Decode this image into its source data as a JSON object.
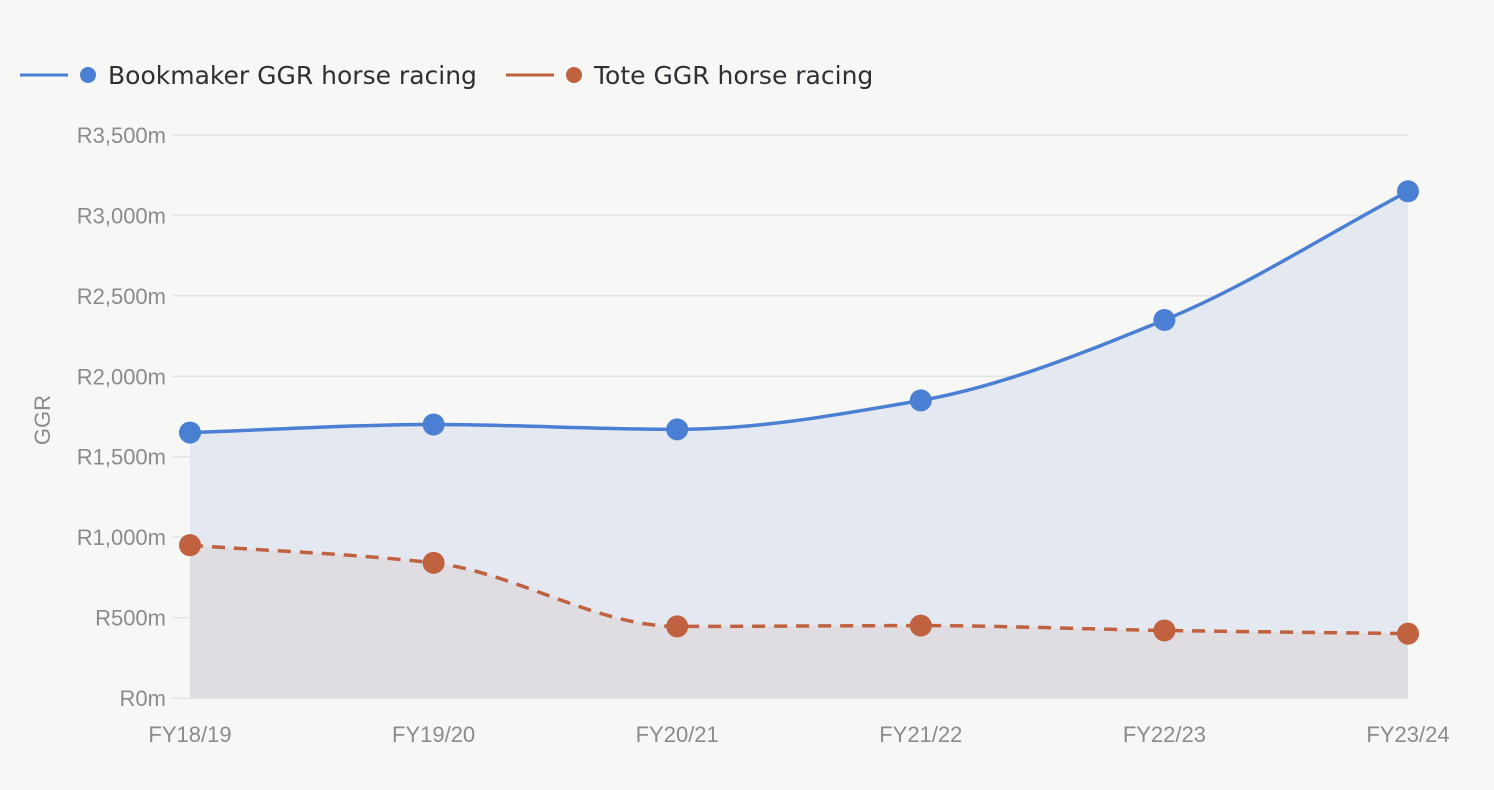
{
  "chart_data": {
    "type": "area",
    "title": "",
    "xlabel": "",
    "ylabel": "GGR",
    "categories": [
      "FY18/19",
      "FY19/20",
      "FY20/21",
      "FY21/22",
      "FY22/23",
      "FY23/24"
    ],
    "ylim": [
      0,
      3500
    ],
    "yticks": [
      0,
      500,
      1000,
      1500,
      2000,
      2500,
      3000,
      3500
    ],
    "ytick_labels": [
      "R0m",
      "R500m",
      "R1,000m",
      "R1,500m",
      "R2,000m",
      "R2,500m",
      "R3,000m",
      "R3,500m"
    ],
    "grid": true,
    "legend_position": "top-left",
    "series": [
      {
        "name": "Bookmaker GGR horse racing",
        "values": [
          1650,
          1700,
          1670,
          1850,
          2350,
          3150
        ],
        "color": "#4a7fd4",
        "fill": "#e3e8f1",
        "line_style": "solid"
      },
      {
        "name": "Tote GGR horse racing",
        "values": [
          950,
          840,
          445,
          450,
          420,
          400
        ],
        "color": "#c0613f",
        "fill": "#dfdde2",
        "line_style": "dashed"
      }
    ]
  }
}
